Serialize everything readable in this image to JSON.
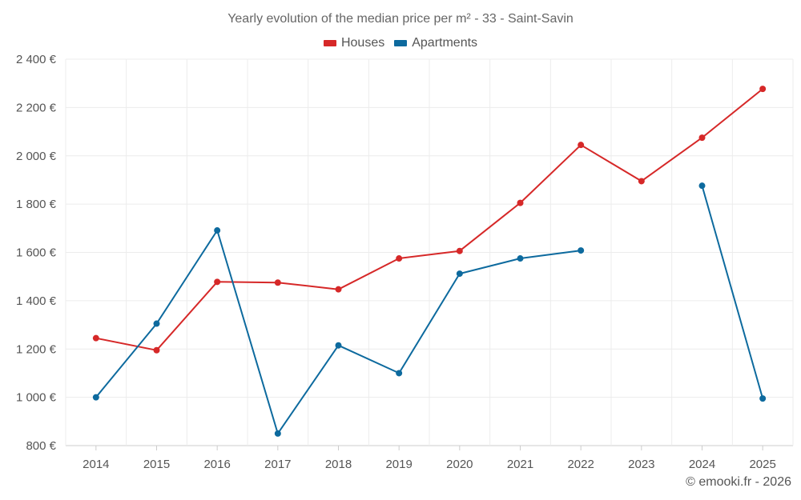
{
  "chart_data": {
    "type": "line",
    "title": "Yearly evolution of the median price per m² - 33 - Saint-Savin",
    "categories": [
      "2014",
      "2015",
      "2016",
      "2017",
      "2018",
      "2019",
      "2020",
      "2021",
      "2022",
      "2023",
      "2024",
      "2025"
    ],
    "ylim": [
      800,
      2400
    ],
    "yticks": [
      800,
      1000,
      1200,
      1400,
      1600,
      1800,
      2000,
      2200,
      2400
    ],
    "ytick_labels": [
      "800 €",
      "1 000 €",
      "1 200 €",
      "1 400 €",
      "1 600 €",
      "1 800 €",
      "2 000 €",
      "2 200 €",
      "2 400 €"
    ],
    "grid": true,
    "legend_position": "top-center",
    "series": [
      {
        "name": "Houses",
        "color": "#d62828",
        "values": [
          1245,
          1195,
          1478,
          1475,
          1447,
          1575,
          1606,
          1805,
          2045,
          1895,
          2075,
          2277
        ]
      },
      {
        "name": "Apartments",
        "color": "#0d6a9e",
        "values": [
          1000,
          1305,
          1691,
          850,
          1215,
          1100,
          1512,
          1575,
          1608,
          null,
          1876,
          995
        ]
      }
    ]
  },
  "credit": "© emooki.fr - 2026"
}
